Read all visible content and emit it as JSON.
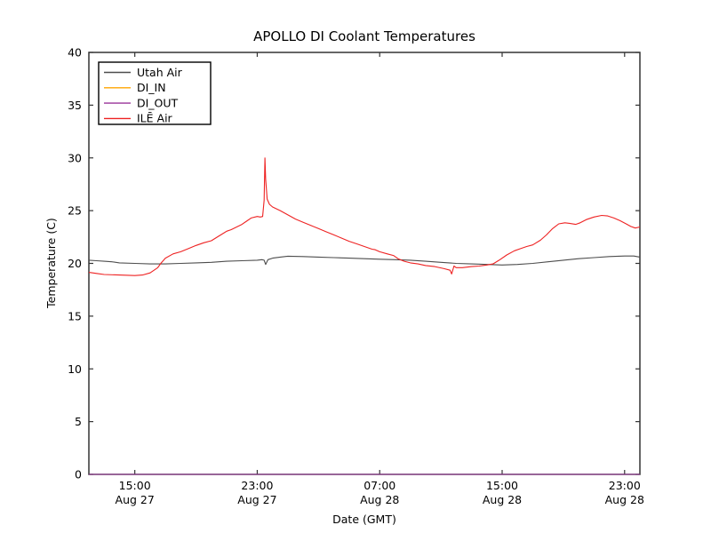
{
  "figure": {
    "background": "#ffffff",
    "axis_color": "#333333"
  },
  "chart_data": {
    "type": "line",
    "title": "APOLLO DI Coolant Temperatures",
    "xlabel": "Date (GMT)",
    "ylabel": "Temperature (C)",
    "xlim": [
      0,
      36
    ],
    "ylim": [
      0,
      40
    ],
    "grid": false,
    "legend_position": "upper left",
    "x_unit_note": "hours after Aug 27 12:00 GMT",
    "y_ticks": [
      0,
      5,
      10,
      15,
      20,
      25,
      30,
      35,
      40
    ],
    "x_ticks": [
      {
        "pos": 3,
        "time": "15:00",
        "date": "Aug 27"
      },
      {
        "pos": 11,
        "time": "23:00",
        "date": "Aug 27"
      },
      {
        "pos": 19,
        "time": "07:00",
        "date": "Aug 28"
      },
      {
        "pos": 27,
        "time": "15:00",
        "date": "Aug 28"
      },
      {
        "pos": 35,
        "time": "23:00",
        "date": "Aug 28"
      }
    ],
    "series": [
      {
        "name": "Utah Air",
        "color": "#4d4d4d",
        "points": [
          [
            0,
            20.3
          ],
          [
            0.5,
            20.25
          ],
          [
            1,
            20.2
          ],
          [
            1.5,
            20.15
          ],
          [
            2,
            20.05
          ],
          [
            3,
            20.0
          ],
          [
            4,
            19.95
          ],
          [
            5,
            19.95
          ],
          [
            6,
            20.0
          ],
          [
            7,
            20.05
          ],
          [
            8,
            20.1
          ],
          [
            9,
            20.2
          ],
          [
            10,
            20.25
          ],
          [
            11,
            20.3
          ],
          [
            11.3,
            20.35
          ],
          [
            11.45,
            20.3
          ],
          [
            11.55,
            19.9
          ],
          [
            11.7,
            20.35
          ],
          [
            12,
            20.5
          ],
          [
            12.5,
            20.6
          ],
          [
            13,
            20.68
          ],
          [
            14,
            20.65
          ],
          [
            15,
            20.6
          ],
          [
            16,
            20.55
          ],
          [
            17,
            20.5
          ],
          [
            18,
            20.45
          ],
          [
            19,
            20.4
          ],
          [
            20,
            20.35
          ],
          [
            21,
            20.3
          ],
          [
            22,
            20.2
          ],
          [
            23,
            20.1
          ],
          [
            24,
            20.0
          ],
          [
            25,
            19.95
          ],
          [
            26,
            19.9
          ],
          [
            27,
            19.85
          ],
          [
            28,
            19.9
          ],
          [
            29,
            20.0
          ],
          [
            30,
            20.15
          ],
          [
            31,
            20.3
          ],
          [
            32,
            20.45
          ],
          [
            33,
            20.55
          ],
          [
            34,
            20.65
          ],
          [
            35,
            20.7
          ],
          [
            35.6,
            20.7
          ],
          [
            36,
            20.6
          ]
        ]
      },
      {
        "name": "DI_IN",
        "color": "#ffa500",
        "points": [
          [
            0,
            0
          ],
          [
            36,
            0
          ]
        ]
      },
      {
        "name": "DI_OUT",
        "color": "#993399",
        "points": [
          [
            0,
            0
          ],
          [
            36,
            0
          ]
        ]
      },
      {
        "name": "ILĒ Air",
        "color": "#ee2222",
        "points": [
          [
            0,
            19.15
          ],
          [
            0.5,
            19.05
          ],
          [
            1,
            18.95
          ],
          [
            2,
            18.9
          ],
          [
            3,
            18.85
          ],
          [
            3.5,
            18.9
          ],
          [
            4,
            19.1
          ],
          [
            4.5,
            19.6
          ],
          [
            4.7,
            20.0
          ],
          [
            5,
            20.5
          ],
          [
            5.5,
            20.9
          ],
          [
            6,
            21.1
          ],
          [
            6.5,
            21.4
          ],
          [
            7,
            21.7
          ],
          [
            7.5,
            21.95
          ],
          [
            8,
            22.15
          ],
          [
            8.5,
            22.6
          ],
          [
            9,
            23.05
          ],
          [
            9.3,
            23.2
          ],
          [
            10,
            23.7
          ],
          [
            10.3,
            24.0
          ],
          [
            10.6,
            24.3
          ],
          [
            11,
            24.45
          ],
          [
            11.2,
            24.4
          ],
          [
            11.35,
            24.45
          ],
          [
            11.45,
            26.0
          ],
          [
            11.5,
            30.0
          ],
          [
            11.55,
            28.0
          ],
          [
            11.65,
            26.1
          ],
          [
            11.8,
            25.6
          ],
          [
            12,
            25.35
          ],
          [
            12.5,
            25.0
          ],
          [
            13,
            24.6
          ],
          [
            13.5,
            24.2
          ],
          [
            14,
            23.9
          ],
          [
            14.5,
            23.6
          ],
          [
            15,
            23.3
          ],
          [
            15.5,
            23.0
          ],
          [
            16,
            22.7
          ],
          [
            16.5,
            22.4
          ],
          [
            17,
            22.1
          ],
          [
            17.5,
            21.85
          ],
          [
            18,
            21.6
          ],
          [
            18.5,
            21.35
          ],
          [
            18.7,
            21.3
          ],
          [
            19,
            21.1
          ],
          [
            19.5,
            20.9
          ],
          [
            19.9,
            20.75
          ],
          [
            20.2,
            20.45
          ],
          [
            20.6,
            20.2
          ],
          [
            21,
            20.05
          ],
          [
            21.5,
            19.95
          ],
          [
            22,
            19.8
          ],
          [
            22.6,
            19.7
          ],
          [
            23.2,
            19.5
          ],
          [
            23.6,
            19.35
          ],
          [
            23.7,
            19.0
          ],
          [
            23.85,
            19.75
          ],
          [
            24,
            19.6
          ],
          [
            24.4,
            19.6
          ],
          [
            25,
            19.7
          ],
          [
            25.5,
            19.75
          ],
          [
            26,
            19.85
          ],
          [
            26.4,
            19.95
          ],
          [
            26.8,
            20.3
          ],
          [
            27.3,
            20.8
          ],
          [
            27.8,
            21.2
          ],
          [
            28.2,
            21.4
          ],
          [
            28.6,
            21.6
          ],
          [
            29,
            21.75
          ],
          [
            29.5,
            22.2
          ],
          [
            29.9,
            22.7
          ],
          [
            30.3,
            23.3
          ],
          [
            30.7,
            23.75
          ],
          [
            31.1,
            23.85
          ],
          [
            31.4,
            23.8
          ],
          [
            31.8,
            23.7
          ],
          [
            32.1,
            23.85
          ],
          [
            32.5,
            24.15
          ],
          [
            33,
            24.4
          ],
          [
            33.5,
            24.55
          ],
          [
            33.9,
            24.5
          ],
          [
            34.3,
            24.3
          ],
          [
            34.7,
            24.05
          ],
          [
            35.1,
            23.75
          ],
          [
            35.4,
            23.5
          ],
          [
            35.7,
            23.35
          ],
          [
            36,
            23.45
          ]
        ]
      }
    ]
  }
}
